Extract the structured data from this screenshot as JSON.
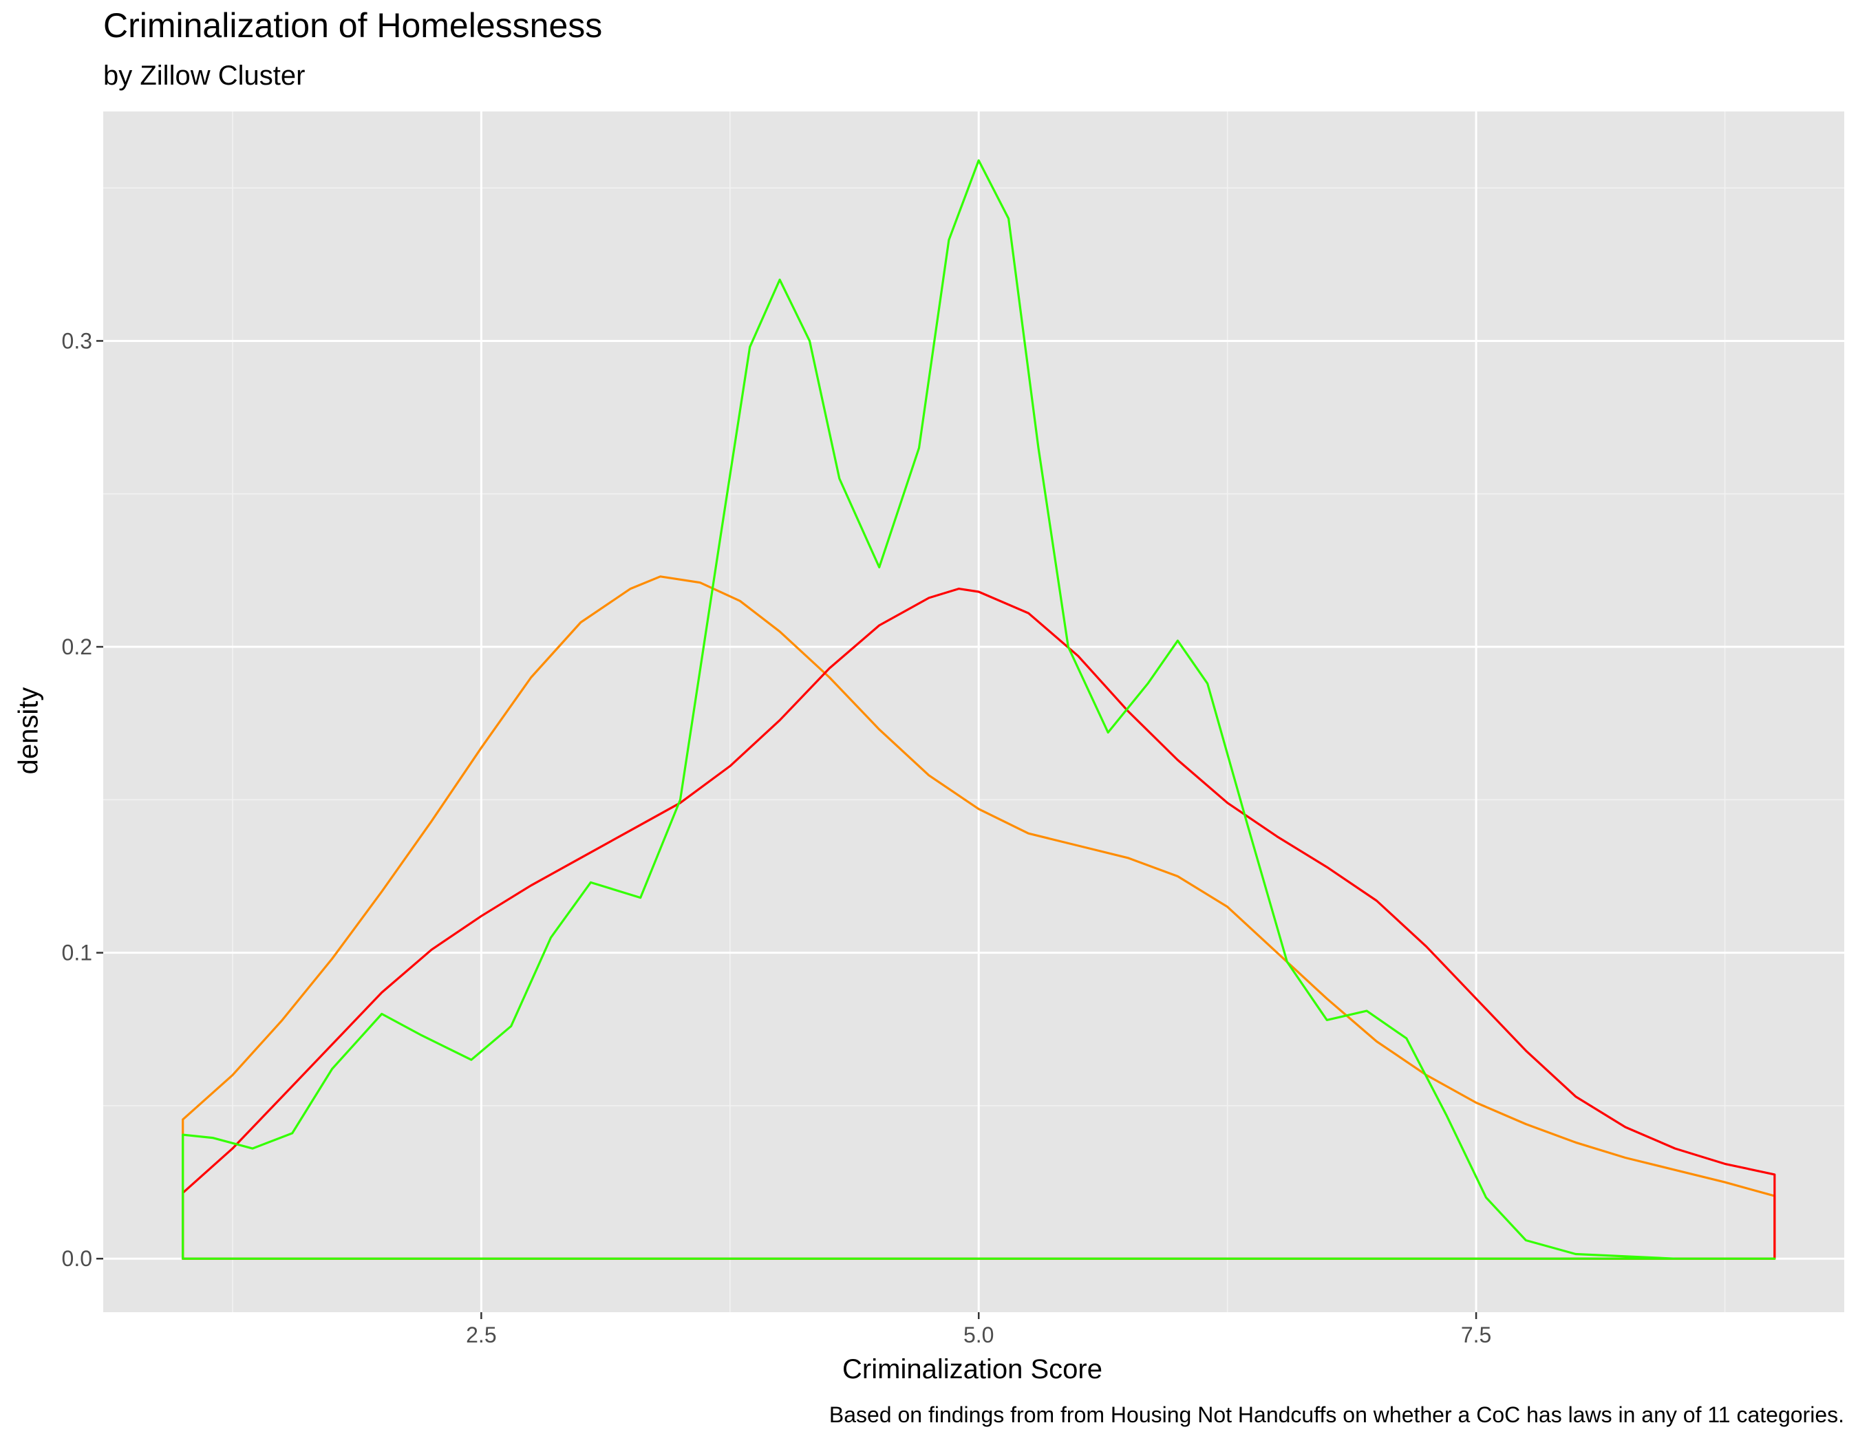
{
  "chart_data": {
    "type": "line",
    "title": "Criminalization of Homelessness",
    "subtitle": "by Zillow Cluster",
    "caption": "Based on findings from from Housing Not Handcuffs on whether a CoC has laws in any of 11 categories.",
    "xlabel": "Criminalization Score",
    "ylabel": "density",
    "xlim": [
      0.6,
      9.35
    ],
    "ylim": [
      -0.0175,
      0.375
    ],
    "xticks": [
      {
        "value": 2.5,
        "label": "2.5"
      },
      {
        "value": 5.0,
        "label": "5.0"
      },
      {
        "value": 7.5,
        "label": "7.5"
      }
    ],
    "yticks": [
      {
        "value": 0.0,
        "label": "0.0"
      },
      {
        "value": 0.1,
        "label": "0.1"
      },
      {
        "value": 0.2,
        "label": "0.2"
      },
      {
        "value": 0.3,
        "label": "0.3"
      }
    ],
    "x_minor": [
      1.25,
      3.75,
      6.25,
      8.75
    ],
    "y_minor": [
      0.05,
      0.15,
      0.25,
      0.35
    ],
    "grid": true,
    "background": "#e5e5e5",
    "series": [
      {
        "color": "#ff8c00",
        "x": [
          1.0,
          1.25,
          1.5,
          1.75,
          2.0,
          2.25,
          2.5,
          2.75,
          3.0,
          3.25,
          3.4,
          3.6,
          3.8,
          4.0,
          4.25,
          4.5,
          4.75,
          5.0,
          5.25,
          5.5,
          5.75,
          6.0,
          6.25,
          6.5,
          6.75,
          7.0,
          7.25,
          7.5,
          7.75,
          8.0,
          8.25,
          8.5,
          8.75,
          9.0
        ],
        "y": [
          0.0455,
          0.06,
          0.078,
          0.098,
          0.12,
          0.143,
          0.167,
          0.19,
          0.208,
          0.219,
          0.223,
          0.221,
          0.215,
          0.205,
          0.19,
          0.173,
          0.158,
          0.147,
          0.139,
          0.135,
          0.131,
          0.125,
          0.115,
          0.1,
          0.085,
          0.071,
          0.06,
          0.051,
          0.044,
          0.038,
          0.033,
          0.029,
          0.025,
          0.0205
        ]
      },
      {
        "color": "#ff0000",
        "x": [
          1.0,
          1.25,
          1.5,
          1.75,
          2.0,
          2.25,
          2.5,
          2.75,
          3.0,
          3.25,
          3.5,
          3.75,
          4.0,
          4.25,
          4.5,
          4.75,
          4.9,
          5.0,
          5.25,
          5.5,
          5.75,
          6.0,
          6.25,
          6.5,
          6.75,
          7.0,
          7.25,
          7.5,
          7.75,
          8.0,
          8.25,
          8.5,
          8.75,
          9.0
        ],
        "y": [
          0.0215,
          0.036,
          0.053,
          0.07,
          0.087,
          0.101,
          0.112,
          0.122,
          0.131,
          0.14,
          0.149,
          0.161,
          0.176,
          0.193,
          0.207,
          0.216,
          0.219,
          0.218,
          0.211,
          0.197,
          0.179,
          0.163,
          0.149,
          0.138,
          0.128,
          0.117,
          0.102,
          0.085,
          0.068,
          0.053,
          0.043,
          0.036,
          0.031,
          0.0275
        ]
      },
      {
        "color": "#33ff00",
        "x": [
          1.0,
          1.15,
          1.35,
          1.55,
          1.75,
          2.0,
          2.2,
          2.45,
          2.65,
          2.85,
          3.05,
          3.3,
          3.5,
          3.7,
          3.85,
          4.0,
          4.15,
          4.3,
          4.5,
          4.7,
          4.85,
          5.0,
          5.15,
          5.3,
          5.45,
          5.65,
          5.85,
          6.0,
          6.15,
          6.35,
          6.55,
          6.75,
          6.95,
          7.15,
          7.35,
          7.55,
          7.75,
          8.0,
          8.5,
          9.0
        ],
        "y": [
          0.0405,
          0.0395,
          0.036,
          0.041,
          0.062,
          0.08,
          0.073,
          0.065,
          0.076,
          0.105,
          0.123,
          0.118,
          0.15,
          0.235,
          0.298,
          0.32,
          0.3,
          0.255,
          0.226,
          0.265,
          0.333,
          0.359,
          0.34,
          0.265,
          0.2,
          0.172,
          0.188,
          0.202,
          0.188,
          0.142,
          0.097,
          0.078,
          0.081,
          0.072,
          0.047,
          0.02,
          0.006,
          0.0015,
          0.0,
          0.0
        ]
      }
    ]
  }
}
